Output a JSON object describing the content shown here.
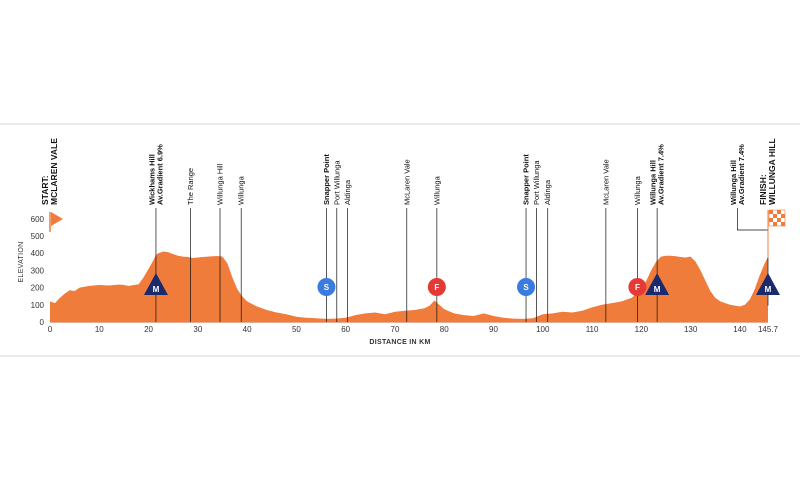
{
  "chart_data": {
    "type": "area",
    "xlabel": "DISTANCE IN KM",
    "ylabel": "ELEVATION",
    "xlim": [
      0,
      145.7
    ],
    "ylim": [
      0,
      650
    ],
    "x_ticks": [
      0,
      10,
      20,
      30,
      40,
      50,
      60,
      70,
      80,
      90,
      100,
      110,
      120,
      130,
      140
    ],
    "x_tick_labels": [
      "0",
      "10",
      "20",
      "30",
      "40",
      "50",
      "60",
      "70",
      "80",
      "90",
      "100",
      "110",
      "120",
      "130",
      "140"
    ],
    "x_end_label": "145.7",
    "y_ticks": [
      0,
      100,
      200,
      300,
      400,
      500,
      600
    ],
    "y_tick_labels": [
      "0",
      "100",
      "200",
      "300",
      "400",
      "500",
      "600"
    ],
    "grid": true,
    "colors": {
      "profile": "#ef7c3b",
      "climb_badge": "#1a2a6c",
      "sprint_badge": "#3a7be0",
      "feed_badge": "#e53935",
      "flag": "#ef7c3b"
    },
    "profile": {
      "x": [
        0,
        1,
        2,
        3,
        4,
        5,
        6,
        8,
        10,
        12,
        14,
        15,
        16,
        17,
        18,
        19,
        20,
        21,
        21.5,
        22,
        23,
        24,
        25,
        26,
        27,
        28,
        29,
        30,
        31,
        32,
        33,
        34,
        35,
        36,
        37,
        38,
        39,
        40,
        42,
        44,
        46,
        48,
        50,
        52,
        54,
        56,
        58,
        60,
        62,
        64,
        66,
        68,
        70,
        72,
        74,
        76,
        77,
        78,
        79,
        80,
        82,
        84,
        86,
        88,
        90,
        92,
        94,
        96,
        98,
        100,
        102,
        104,
        106,
        108,
        110,
        112,
        114,
        116,
        118,
        119,
        120,
        121,
        122,
        123,
        124,
        125,
        126,
        127,
        128,
        129,
        130,
        131,
        132,
        133,
        134,
        135,
        136,
        138,
        140,
        141,
        142,
        143,
        144,
        145,
        145.7
      ],
      "y": [
        120,
        110,
        140,
        165,
        185,
        180,
        200,
        210,
        215,
        212,
        218,
        215,
        210,
        215,
        220,
        260,
        310,
        360,
        390,
        400,
        410,
        405,
        395,
        385,
        380,
        378,
        372,
        375,
        378,
        380,
        382,
        384,
        380,
        340,
        260,
        190,
        150,
        120,
        90,
        70,
        55,
        45,
        30,
        25,
        22,
        18,
        20,
        25,
        40,
        50,
        55,
        45,
        60,
        65,
        70,
        80,
        95,
        125,
        100,
        75,
        50,
        40,
        35,
        50,
        35,
        25,
        20,
        18,
        22,
        45,
        50,
        60,
        55,
        65,
        85,
        100,
        110,
        120,
        140,
        165,
        190,
        240,
        300,
        350,
        380,
        385,
        385,
        382,
        378,
        375,
        380,
        350,
        300,
        240,
        180,
        140,
        120,
        100,
        90,
        100,
        130,
        190,
        270,
        340,
        380
      ]
    },
    "markers": [
      {
        "label": "START: MCLAREN VALE",
        "x": 0,
        "style": "endpoint"
      },
      {
        "label": "Wickhams Hill Av.Gradient 6.9%",
        "x": 21.5,
        "style": "bold"
      },
      {
        "label": "The Range",
        "x": 28.5,
        "style": "normal"
      },
      {
        "label": "Willunga Hill",
        "x": 34.5,
        "style": "normal"
      },
      {
        "label": "Willunga",
        "x": 38.8,
        "style": "normal"
      },
      {
        "label": "Snapper Point",
        "x": 56.1,
        "style": "bold"
      },
      {
        "label": "Port Willunga",
        "x": 58.2,
        "style": "normal"
      },
      {
        "label": "Aldinga",
        "x": 60.4,
        "style": "normal"
      },
      {
        "label": "McLaren Vale",
        "x": 72.4,
        "style": "normal"
      },
      {
        "label": "Willunga",
        "x": 78.5,
        "style": "normal"
      },
      {
        "label": "Snapper Point",
        "x": 96.6,
        "style": "bold"
      },
      {
        "label": "Port Willunga",
        "x": 98.7,
        "style": "normal"
      },
      {
        "label": "Aldinga",
        "x": 101.0,
        "style": "normal"
      },
      {
        "label": "McLaren Vale",
        "x": 112.8,
        "style": "normal"
      },
      {
        "label": "Willunga",
        "x": 119.2,
        "style": "normal"
      },
      {
        "label": "Willunga Hill Av.Gradient 7.4%",
        "x": 123.2,
        "style": "bold"
      },
      {
        "label": "Willunga Hill Av.Gradient 7.4%",
        "x": 140.5,
        "style": "bold"
      },
      {
        "label": "FINISH: WILLUNGA HILL",
        "x": 145.7,
        "style": "endpoint"
      }
    ],
    "badges": [
      {
        "label": "M",
        "x": 21.5,
        "shape": "triangle"
      },
      {
        "label": "S",
        "x": 56.1,
        "shape": "circle"
      },
      {
        "label": "F",
        "x": 78.5,
        "shape": "circle"
      },
      {
        "label": "S",
        "x": 96.6,
        "shape": "circle"
      },
      {
        "label": "F",
        "x": 119.2,
        "shape": "circle"
      },
      {
        "label": "M",
        "x": 123.2,
        "shape": "triangle"
      },
      {
        "label": "M",
        "x": 145.7,
        "shape": "triangle"
      }
    ]
  }
}
